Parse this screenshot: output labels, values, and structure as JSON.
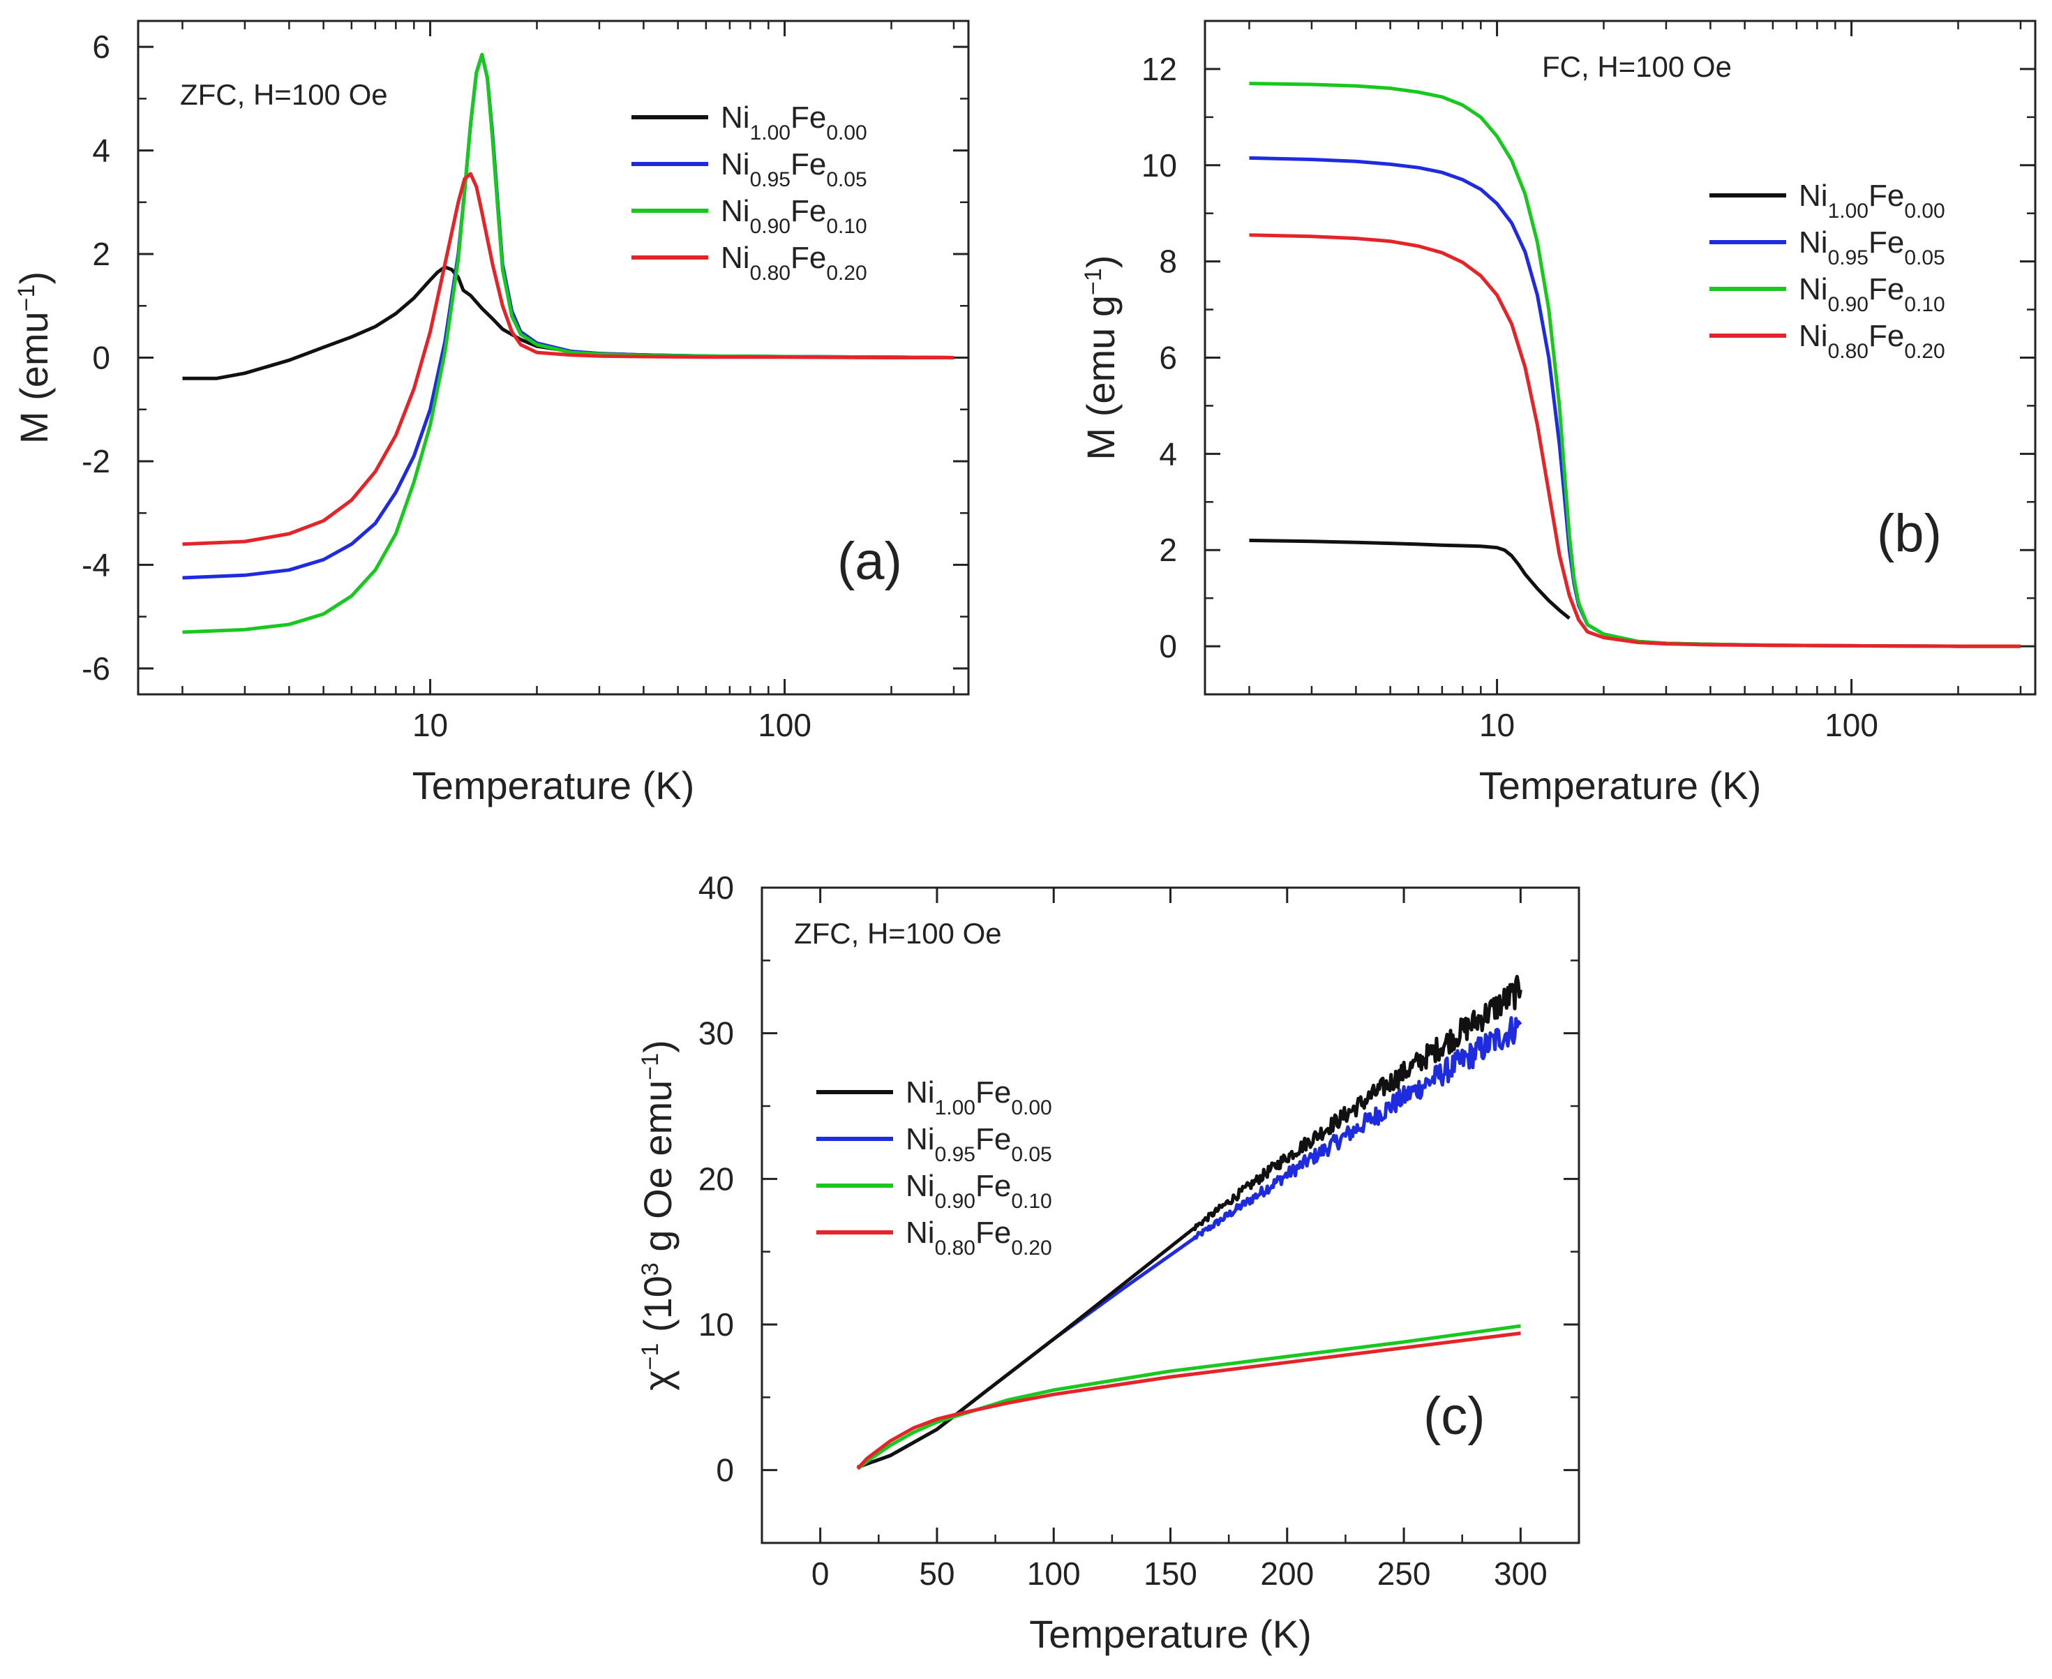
{
  "colors": {
    "black": "#111111",
    "blue": "#1f2bde",
    "green": "#18c81f",
    "red": "#e5242a",
    "axis": "#222222"
  },
  "chart_data": [
    {
      "id": "a",
      "type": "line",
      "panel_label": "(a)",
      "annotation": "ZFC, H=100 Oe",
      "xlabel": "Temperature (K)",
      "ylabel": "M (emu",
      "ylabel_sup": "−1",
      "ylabel_close": ")",
      "xscale": "log",
      "xlim": [
        1.5,
        330
      ],
      "ylim": [
        -6.5,
        6.5
      ],
      "xticks": [
        10,
        100
      ],
      "xtick_labels": [
        "10",
        "100"
      ],
      "yticks": [
        6,
        4,
        2,
        0,
        -2,
        -4,
        -6
      ],
      "ytick_labels": [
        "6",
        "4",
        "2",
        "0",
        "-2",
        "-4",
        "-6"
      ],
      "legend_position": "top-right",
      "series": [
        {
          "name_main": "Ni",
          "sub1": "1.00",
          "name_mid": "Fe",
          "sub2": "0.00",
          "color": "#111111",
          "x": [
            2,
            2.5,
            3,
            4,
            5,
            6,
            7,
            8,
            9,
            10,
            10.5,
            11,
            11.5,
            12,
            12.4,
            13,
            14,
            15,
            16,
            18,
            20,
            25,
            30,
            40,
            60,
            100,
            200,
            300
          ],
          "y": [
            -0.4,
            -0.4,
            -0.3,
            -0.05,
            0.2,
            0.4,
            0.6,
            0.85,
            1.15,
            1.5,
            1.65,
            1.75,
            1.7,
            1.55,
            1.3,
            1.2,
            0.95,
            0.75,
            0.55,
            0.35,
            0.22,
            0.12,
            0.08,
            0.05,
            0.03,
            0.02,
            0.01,
            0.0
          ]
        },
        {
          "name_main": "Ni",
          "sub1": "0.95",
          "name_mid": "Fe",
          "sub2": "0.05",
          "color": "#1f2bde",
          "x": [
            2,
            3,
            4,
            5,
            6,
            7,
            8,
            9,
            10,
            11,
            12,
            12.5,
            13,
            13.5,
            14,
            14.5,
            15,
            15.5,
            16,
            17,
            18,
            20,
            25,
            30,
            40,
            60,
            100,
            200,
            300
          ],
          "y": [
            -4.25,
            -4.2,
            -4.1,
            -3.9,
            -3.6,
            -3.2,
            -2.6,
            -1.9,
            -1.0,
            0.3,
            2.0,
            3.2,
            4.5,
            5.5,
            5.85,
            5.4,
            4.3,
            3.0,
            1.8,
            0.9,
            0.5,
            0.28,
            0.12,
            0.08,
            0.05,
            0.03,
            0.02,
            0.01,
            0.0
          ]
        },
        {
          "name_main": "Ni",
          "sub1": "0.90",
          "name_mid": "Fe",
          "sub2": "0.10",
          "color": "#18c81f",
          "x": [
            2,
            3,
            4,
            5,
            6,
            7,
            8,
            9,
            10,
            11,
            12,
            12.5,
            13,
            13.5,
            14,
            14.5,
            15,
            15.5,
            16,
            17,
            18,
            20,
            25,
            30,
            40,
            60,
            100,
            200,
            300
          ],
          "y": [
            -5.3,
            -5.25,
            -5.15,
            -4.95,
            -4.6,
            -4.1,
            -3.4,
            -2.4,
            -1.3,
            0.1,
            1.9,
            3.2,
            4.5,
            5.5,
            5.85,
            5.4,
            4.2,
            2.9,
            1.7,
            0.8,
            0.45,
            0.25,
            0.1,
            0.07,
            0.04,
            0.03,
            0.02,
            0.01,
            0.0
          ]
        },
        {
          "name_main": "Ni",
          "sub1": "0.80",
          "name_mid": "Fe",
          "sub2": "0.20",
          "color": "#e5242a",
          "x": [
            2,
            3,
            4,
            5,
            6,
            7,
            8,
            9,
            10,
            11,
            12,
            12.5,
            13,
            13.5,
            14,
            15,
            16,
            17,
            18,
            20,
            25,
            30,
            40,
            60,
            100,
            200,
            300
          ],
          "y": [
            -3.6,
            -3.55,
            -3.4,
            -3.15,
            -2.75,
            -2.2,
            -1.5,
            -0.6,
            0.5,
            1.8,
            3.0,
            3.45,
            3.55,
            3.3,
            2.8,
            1.8,
            1.0,
            0.5,
            0.25,
            0.1,
            0.05,
            0.03,
            0.02,
            0.01,
            0.01,
            0.0,
            0.0
          ]
        }
      ]
    },
    {
      "id": "b",
      "type": "line",
      "panel_label": "(b)",
      "annotation": "FC, H=100 Oe",
      "xlabel": "Temperature (K)",
      "ylabel": "M (emu g",
      "ylabel_sup": "−1",
      "ylabel_close": ")",
      "xscale": "log",
      "xlim": [
        1.5,
        330
      ],
      "ylim": [
        -1,
        13
      ],
      "xticks": [
        10,
        100
      ],
      "xtick_labels": [
        "10",
        "100"
      ],
      "yticks": [
        0,
        2,
        4,
        6,
        8,
        10,
        12
      ],
      "ytick_labels": [
        "0",
        "2",
        "4",
        "6",
        "8",
        "10",
        "12"
      ],
      "legend_position": "right",
      "series": [
        {
          "name_main": "Ni",
          "sub1": "1.00",
          "name_mid": "Fe",
          "sub2": "0.00",
          "color": "#111111",
          "x": [
            2,
            3,
            4,
            5,
            6,
            7,
            8,
            9,
            10,
            10.5,
            11,
            11.5,
            12,
            13,
            14,
            15,
            16
          ],
          "y": [
            2.2,
            2.18,
            2.16,
            2.14,
            2.12,
            2.1,
            2.09,
            2.08,
            2.05,
            2.0,
            1.88,
            1.7,
            1.5,
            1.2,
            0.95,
            0.75,
            0.58
          ]
        },
        {
          "name_main": "Ni",
          "sub1": "0.95",
          "name_mid": "Fe",
          "sub2": "0.05",
          "color": "#1f2bde",
          "x": [
            2,
            3,
            4,
            5,
            6,
            7,
            8,
            9,
            10,
            11,
            12,
            13,
            14,
            15,
            15.5,
            16,
            16.5,
            17,
            18,
            20,
            25,
            30,
            40,
            60,
            100,
            200,
            300
          ],
          "y": [
            10.15,
            10.12,
            10.08,
            10.02,
            9.95,
            9.85,
            9.7,
            9.5,
            9.2,
            8.8,
            8.2,
            7.3,
            6.0,
            4.2,
            3.1,
            2.0,
            1.3,
            0.85,
            0.45,
            0.25,
            0.1,
            0.06,
            0.04,
            0.02,
            0.01,
            0.0,
            0.0
          ]
        },
        {
          "name_main": "Ni",
          "sub1": "0.90",
          "name_mid": "Fe",
          "sub2": "0.10",
          "color": "#18c81f",
          "x": [
            2,
            3,
            4,
            5,
            6,
            7,
            8,
            9,
            10,
            11,
            12,
            13,
            14,
            15,
            15.5,
            16,
            16.5,
            17,
            18,
            20,
            25,
            30,
            40,
            60,
            100,
            200,
            300
          ],
          "y": [
            11.7,
            11.68,
            11.65,
            11.6,
            11.52,
            11.42,
            11.25,
            11.0,
            10.6,
            10.1,
            9.4,
            8.4,
            7.0,
            5.0,
            3.6,
            2.3,
            1.4,
            0.9,
            0.45,
            0.25,
            0.1,
            0.06,
            0.04,
            0.02,
            0.01,
            0.0,
            0.0
          ]
        },
        {
          "name_main": "Ni",
          "sub1": "0.80",
          "name_mid": "Fe",
          "sub2": "0.20",
          "color": "#e5242a",
          "x": [
            2,
            3,
            4,
            5,
            6,
            7,
            8,
            9,
            10,
            11,
            12,
            13,
            14,
            15,
            16,
            17,
            18,
            20,
            25,
            30,
            40,
            60,
            100,
            200,
            300
          ],
          "y": [
            8.55,
            8.52,
            8.48,
            8.42,
            8.32,
            8.18,
            7.98,
            7.7,
            7.3,
            6.7,
            5.8,
            4.6,
            3.2,
            1.9,
            1.05,
            0.55,
            0.3,
            0.18,
            0.08,
            0.05,
            0.03,
            0.02,
            0.01,
            0.0,
            0.0
          ]
        }
      ]
    },
    {
      "id": "c",
      "type": "line",
      "panel_label": "(c)",
      "annotation": "ZFC, H=100 Oe",
      "xlabel": "Temperature (K)",
      "ylabel_chi": "χ",
      "ylabel_chi_sup": "−1",
      "ylabel_open": "(10",
      "ylabel_sup3": "3",
      "ylabel_mid": "g Oe emu",
      "ylabel_sup": "−1",
      "ylabel_close": ")",
      "xscale": "linear",
      "xlim": [
        -25,
        325
      ],
      "ylim": [
        -5,
        40
      ],
      "xticks": [
        0,
        50,
        100,
        150,
        200,
        250,
        300
      ],
      "xtick_labels": [
        "0",
        "50",
        "100",
        "150",
        "200",
        "250",
        "300"
      ],
      "yticks": [
        0,
        10,
        20,
        30,
        40
      ],
      "ytick_labels": [
        "0",
        "10",
        "20",
        "30",
        "40"
      ],
      "legend_position": "left",
      "series": [
        {
          "name_main": "Ni",
          "sub1": "1.00",
          "name_mid": "Fe",
          "sub2": "0.00",
          "color": "#111111",
          "noise": 0.9,
          "noise_start": 160,
          "x": [
            16,
            30,
            50,
            70,
            100,
            130,
            160,
            200,
            250,
            300
          ],
          "y": [
            0.2,
            1.0,
            2.8,
            5.3,
            9.0,
            12.8,
            16.6,
            21.5,
            27.3,
            33.0
          ]
        },
        {
          "name_main": "Ni",
          "sub1": "0.95",
          "name_mid": "Fe",
          "sub2": "0.05",
          "color": "#1f2bde",
          "noise": 0.9,
          "noise_start": 160,
          "x": [
            16,
            30,
            50,
            70,
            100,
            130,
            160,
            200,
            250,
            300
          ],
          "y": [
            0.2,
            1.0,
            2.8,
            5.3,
            9.0,
            12.5,
            15.9,
            20.3,
            25.6,
            30.6
          ]
        },
        {
          "name_main": "Ni",
          "sub1": "0.90",
          "name_mid": "Fe",
          "sub2": "0.10",
          "color": "#18c81f",
          "noise": 0,
          "noise_start": 300,
          "x": [
            16,
            20,
            30,
            40,
            50,
            60,
            80,
            100,
            150,
            200,
            250,
            300
          ],
          "y": [
            0.1,
            0.6,
            1.7,
            2.6,
            3.3,
            3.8,
            4.8,
            5.5,
            6.8,
            7.8,
            8.8,
            9.9
          ]
        },
        {
          "name_main": "Ni",
          "sub1": "0.80",
          "name_mid": "Fe",
          "sub2": "0.20",
          "color": "#e5242a",
          "noise": 0,
          "noise_start": 300,
          "x": [
            16,
            20,
            30,
            40,
            50,
            60,
            80,
            100,
            150,
            200,
            250,
            300
          ],
          "y": [
            0.1,
            0.8,
            2.0,
            2.9,
            3.5,
            3.9,
            4.6,
            5.2,
            6.4,
            7.4,
            8.4,
            9.4
          ]
        }
      ]
    }
  ]
}
